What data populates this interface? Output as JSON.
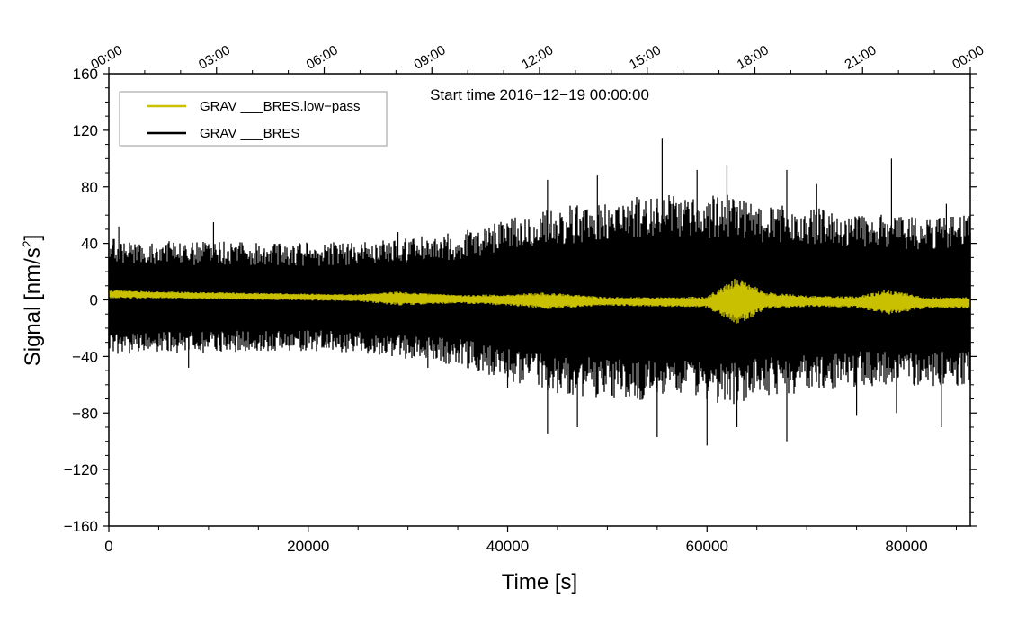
{
  "chart_data": {
    "type": "line",
    "annotation": "Start time 2016−12−19 00:00:00",
    "xlabel": "Time [s]",
    "ylabel_main": "Signal [nm/s",
    "ylabel_sup": "2",
    "ylabel_tail": "]",
    "xlim": [
      0,
      86400
    ],
    "ylim": [
      -160,
      160
    ],
    "grid": false,
    "legend_position": "top-left",
    "x_ticks": [
      0,
      20000,
      40000,
      60000,
      80000
    ],
    "x_tick_labels": [
      "0",
      "20000",
      "40000",
      "60000",
      "80000"
    ],
    "y_ticks": [
      -160,
      -120,
      -80,
      -40,
      0,
      40,
      80,
      120,
      160
    ],
    "y_tick_labels": [
      "−160",
      "−120",
      "−80",
      "−40",
      "0",
      "40",
      "80",
      "120",
      "160"
    ],
    "top_ticks_seconds": [
      0,
      10800,
      21600,
      32400,
      43200,
      54000,
      64800,
      75600,
      86400
    ],
    "top_tick_labels": [
      "00:00",
      "03:00",
      "06:00",
      "09:00",
      "12:00",
      "15:00",
      "18:00",
      "21:00",
      "00:00"
    ],
    "series": [
      {
        "name": "GRAV ___BRES.low−pass",
        "color": "#c8c000",
        "envelope_x": [
          0,
          5000,
          10000,
          15000,
          20000,
          25000,
          29000,
          35000,
          40000,
          44000,
          50000,
          56000,
          60000,
          63000,
          66000,
          70000,
          75000,
          78000,
          82000,
          86400
        ],
        "envelope_center": [
          4,
          3.5,
          3,
          2.5,
          2,
          1.5,
          1,
          0.5,
          0,
          -0.5,
          -1,
          -1.5,
          -1.5,
          -1,
          -0.5,
          -1,
          -1.5,
          -1.5,
          -2,
          -2
        ],
        "envelope_halfwidth": [
          3,
          2.5,
          2.5,
          2.5,
          2.5,
          2.5,
          5,
          3,
          4,
          6,
          3,
          3.5,
          4,
          17,
          6,
          4,
          4,
          9,
          4,
          4
        ]
      },
      {
        "name": "GRAV ___BRES",
        "color": "#000000",
        "envelope_x": [
          0,
          5000,
          10000,
          15000,
          20000,
          25000,
          30000,
          35000,
          40000,
          45000,
          50000,
          55000,
          60000,
          63000,
          66000,
          70000,
          75000,
          80000,
          86400
        ],
        "envelope_upper": [
          40,
          38,
          38,
          37,
          37,
          38,
          40,
          44,
          52,
          60,
          64,
          68,
          67,
          68,
          62,
          60,
          56,
          54,
          55
        ],
        "envelope_lower": [
          -35,
          -34,
          -34,
          -33,
          -33,
          -34,
          -38,
          -42,
          -52,
          -60,
          -64,
          -66,
          -66,
          -68,
          -62,
          -60,
          -56,
          -56,
          -56
        ],
        "peak_x": [
          1000,
          10500,
          29000,
          44000,
          49000,
          55500,
          59000,
          62000,
          68000,
          71000,
          78500,
          84000
        ],
        "peak_values": [
          52,
          55,
          48,
          85,
          88,
          114,
          92,
          95,
          92,
          82,
          100,
          68
        ],
        "trough_x": [
          8000,
          32000,
          40000,
          44000,
          47000,
          55000,
          60000,
          63000,
          68000,
          75000,
          79000,
          83500
        ],
        "trough_values": [
          -48,
          -48,
          -62,
          -95,
          -90,
          -97,
          -103,
          -90,
          -100,
          -82,
          -80,
          -90
        ]
      }
    ]
  }
}
